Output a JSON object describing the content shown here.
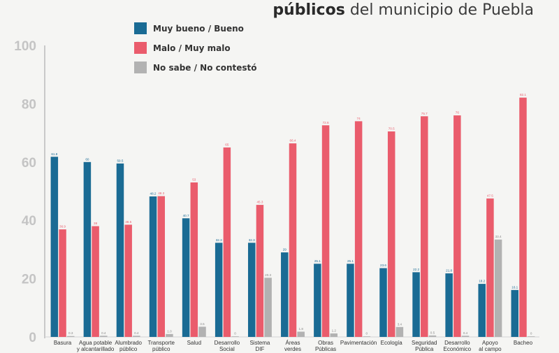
{
  "title": {
    "bold": "públicos",
    "rest": "del municipio de Puebla"
  },
  "colors": {
    "bueno": "#1a6b94",
    "malo": "#ea5c6c",
    "nosabe": "#b2b2b2"
  },
  "chart_data": {
    "type": "bar",
    "ylim": [
      0,
      100
    ],
    "yticks": [
      0,
      20,
      40,
      60,
      80,
      100
    ],
    "categories": [
      [
        "Basura"
      ],
      [
        "Agua potable",
        "y alcantarillado"
      ],
      [
        "Alumbrado",
        "público"
      ],
      [
        "Transporte",
        "público"
      ],
      [
        "Salud"
      ],
      [
        "Desarrollo",
        "Social"
      ],
      [
        "Sistema",
        "DIF"
      ],
      [
        "Áreas",
        "verdes"
      ],
      [
        "Obras",
        "Públicas"
      ],
      [
        "Pavimentación"
      ],
      [
        "Ecología"
      ],
      [
        "Seguridad",
        "Pública"
      ],
      [
        "Desarrollo",
        "Económico"
      ],
      [
        "Apoyo",
        "al campo"
      ],
      [
        "Bacheo"
      ]
    ],
    "series": [
      {
        "name": "Muy bueno / Bueno",
        "values": [
          61.8,
          60,
          59.5,
          48.2,
          40.7,
          32.3,
          32.3,
          29,
          25.1,
          25.1,
          23.6,
          22.2,
          21.8,
          18.2,
          16.1
        ],
        "labels": [
          "61.8",
          "60",
          "59.5",
          "48.2",
          "40.7",
          "32.3",
          "32.3",
          "29",
          "25.1",
          "25.1",
          "23.6",
          "22.2",
          "21.8",
          "18.2",
          "16.1"
        ]
      },
      {
        "name": "Malo / Muy malo",
        "values": [
          36.9,
          38,
          38.5,
          48.3,
          53,
          65,
          45.3,
          66.4,
          72.6,
          74,
          70.5,
          75.7,
          76,
          47.5,
          82.1
        ],
        "labels": [
          "36.9",
          "38",
          "38.5",
          "48.3",
          "53",
          "65",
          "45.3",
          "66.4",
          "72.6",
          "74",
          "70.5",
          "75.7",
          "76",
          "47.5",
          "82.1"
        ]
      },
      {
        "name": "No sabe / No contestó",
        "values": [
          0.3,
          0.4,
          0.4,
          1.0,
          3.5,
          0.2,
          20.3,
          1.8,
          1.2,
          0.2,
          3.4,
          0.5,
          0.4,
          33.4,
          0.2
        ],
        "labels": [
          "0.3",
          "0.4",
          "0.4",
          "1.0",
          "3.5",
          "0",
          "20.3",
          "1.8",
          "1.2",
          "0",
          "3.4",
          "0.5",
          "0.4",
          "33.4",
          "0"
        ]
      }
    ]
  }
}
